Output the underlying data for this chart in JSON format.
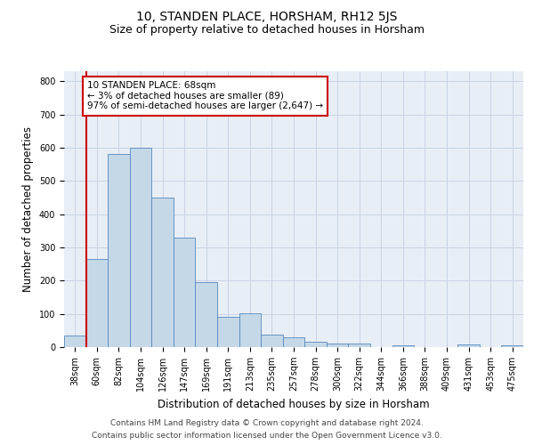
{
  "title": "10, STANDEN PLACE, HORSHAM, RH12 5JS",
  "subtitle": "Size of property relative to detached houses in Horsham",
  "xlabel": "Distribution of detached houses by size in Horsham",
  "ylabel": "Number of detached properties",
  "categories": [
    "38sqm",
    "60sqm",
    "82sqm",
    "104sqm",
    "126sqm",
    "147sqm",
    "169sqm",
    "191sqm",
    "213sqm",
    "235sqm",
    "257sqm",
    "278sqm",
    "300sqm",
    "322sqm",
    "344sqm",
    "366sqm",
    "388sqm",
    "409sqm",
    "431sqm",
    "453sqm",
    "475sqm"
  ],
  "values": [
    35,
    265,
    580,
    600,
    450,
    330,
    195,
    90,
    103,
    37,
    30,
    15,
    10,
    10,
    0,
    5,
    0,
    0,
    8,
    0,
    5
  ],
  "bar_color": "#c5d8e8",
  "bar_edge_color": "#5588bb",
  "annotation_text": "10 STANDEN PLACE: 68sqm\n← 3% of detached houses are smaller (89)\n97% of semi-detached houses are larger (2,647) →",
  "annotation_box_color": "#ffffff",
  "annotation_box_edge_color": "#cc0000",
  "property_line_color": "#cc0000",
  "ylim": [
    0,
    830
  ],
  "yticks": [
    0,
    100,
    200,
    300,
    400,
    500,
    600,
    700,
    800
  ],
  "grid_color": "#c8d4e4",
  "background_color": "#e8eef6",
  "footer_line1": "Contains HM Land Registry data © Crown copyright and database right 2024.",
  "footer_line2": "Contains public sector information licensed under the Open Government Licence v3.0.",
  "title_fontsize": 10,
  "subtitle_fontsize": 9,
  "axis_label_fontsize": 8.5,
  "tick_fontsize": 7,
  "annotation_fontsize": 7.5,
  "footer_fontsize": 6.5
}
